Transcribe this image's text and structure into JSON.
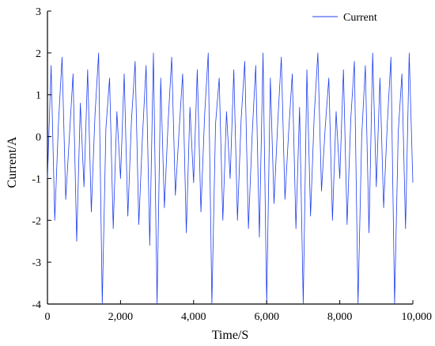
{
  "chart_data": {
    "type": "line",
    "title": "",
    "xlabel": "Time/S",
    "ylabel": "Current/A",
    "xlim": [
      0,
      10000
    ],
    "ylim": [
      -4,
      3
    ],
    "x_ticks": [
      0,
      2000,
      4000,
      6000,
      8000,
      10000
    ],
    "x_tick_labels": [
      "0",
      "2,000",
      "4,000",
      "6,000",
      "8,000",
      "10,000"
    ],
    "y_ticks": [
      -4,
      -3,
      -2,
      -1,
      0,
      1,
      2,
      3
    ],
    "y_tick_labels": [
      "-4",
      "-3",
      "-2",
      "-1",
      "0",
      "1",
      "2",
      "3"
    ],
    "grid": false,
    "legend_position": "top-right",
    "series": [
      {
        "name": "Current",
        "color": "#1f3ff0",
        "x": [
          0,
          100,
          200,
          300,
          400,
          500,
          600,
          700,
          800,
          900,
          1000,
          1100,
          1200,
          1300,
          1400,
          1500,
          1600,
          1700,
          1800,
          1900,
          2000,
          2100,
          2200,
          2300,
          2400,
          2500,
          2600,
          2700,
          2800,
          2900,
          3000,
          3100,
          3200,
          3300,
          3400,
          3500,
          3600,
          3700,
          3800,
          3900,
          4000,
          4100,
          4200,
          4300,
          4400,
          4500,
          4600,
          4700,
          4800,
          4900,
          5000,
          5100,
          5200,
          5300,
          5400,
          5500,
          5600,
          5700,
          5800,
          5900,
          6000,
          6100,
          6200,
          6300,
          6400,
          6500,
          6600,
          6700,
          6800,
          6900,
          7000,
          7100,
          7200,
          7300,
          7400,
          7500,
          7600,
          7700,
          7800,
          7900,
          8000,
          8100,
          8200,
          8300,
          8400,
          8500,
          8600,
          8700,
          8800,
          8900,
          9000,
          9100,
          9200,
          9300,
          9400,
          9500,
          9600,
          9700,
          9800,
          9900,
          10000
        ],
        "y": [
          -1.0,
          1.7,
          -2.0,
          0.3,
          1.9,
          -1.5,
          0.0,
          1.5,
          -2.5,
          0.8,
          -1.2,
          1.6,
          -1.8,
          0.5,
          2.0,
          -4.0,
          0.2,
          1.4,
          -2.2,
          0.6,
          -1.0,
          1.5,
          -1.9,
          0.4,
          1.8,
          -2.1,
          0.0,
          1.7,
          -2.6,
          2.0,
          -4.0,
          1.4,
          -1.7,
          0.3,
          1.9,
          -1.4,
          0.1,
          1.5,
          -2.3,
          0.7,
          -1.1,
          1.6,
          -1.8,
          0.5,
          2.0,
          -4.0,
          0.3,
          1.4,
          -2.0,
          0.6,
          -1.0,
          1.6,
          -2.0,
          0.4,
          1.8,
          -2.2,
          0.0,
          1.7,
          -2.4,
          2.0,
          -4.0,
          1.4,
          -1.6,
          0.3,
          1.9,
          -1.5,
          0.1,
          1.5,
          -2.2,
          0.7,
          -4.0,
          1.6,
          -1.9,
          0.5,
          2.0,
          -1.3,
          0.2,
          1.4,
          -2.0,
          0.6,
          -1.0,
          1.6,
          -2.1,
          0.4,
          1.8,
          -4.0,
          0.0,
          1.7,
          -2.3,
          2.0,
          -1.2,
          1.4,
          -1.7,
          0.3,
          1.9,
          -4.0,
          0.1,
          1.5,
          -2.2,
          2.0,
          -1.1
        ]
      }
    ]
  }
}
